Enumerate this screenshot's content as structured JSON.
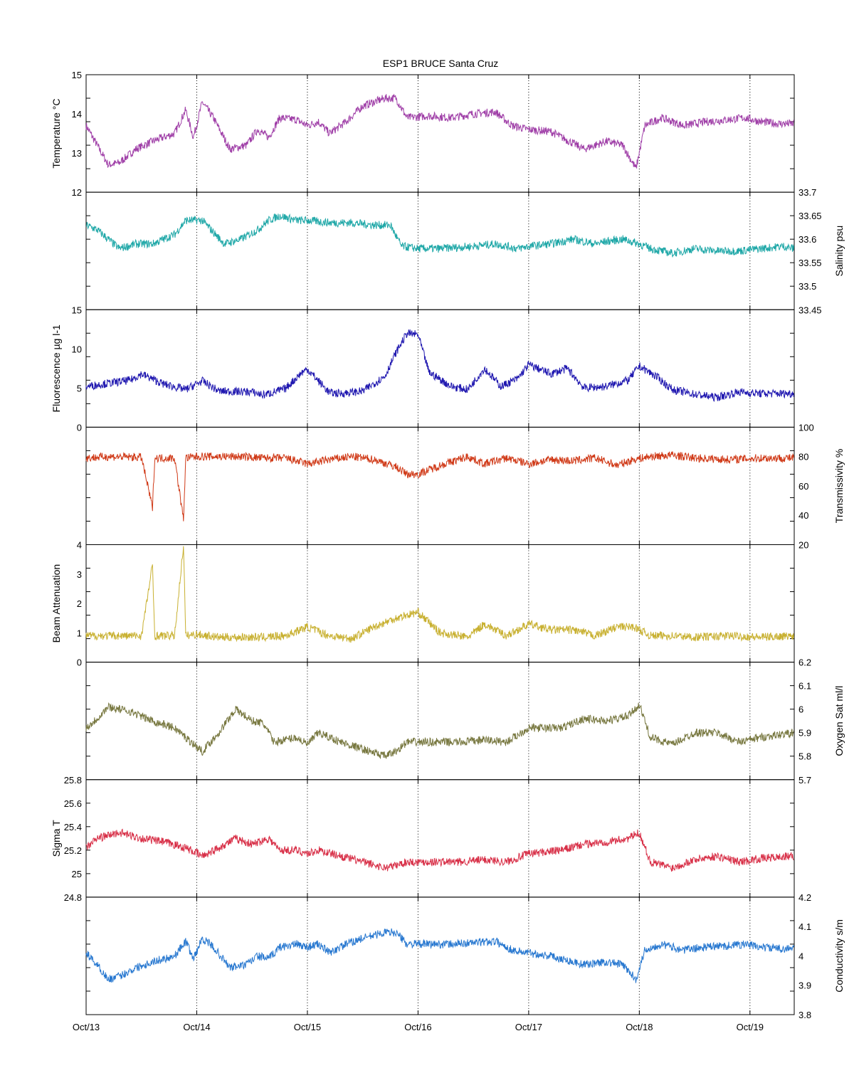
{
  "chart_data": {
    "type": "line",
    "title": "ESP1 BRUCE Santa Cruz",
    "x_ticks": [
      "Oct/13",
      "Oct/14",
      "Oct/15",
      "Oct/16",
      "Oct/17",
      "Oct/18",
      "Oct/19"
    ],
    "x_range_days": [
      13.0,
      19.4
    ],
    "grid": "vertical dotted lines at each day",
    "panels": [
      {
        "ylabel": "Temperature °C",
        "axis": "left",
        "ylim": [
          12,
          15
        ],
        "yticks": [
          "12",
          "13",
          "14",
          "15"
        ],
        "color": "#a040a8",
        "x": [
          13.0,
          13.1,
          13.2,
          13.3,
          13.45,
          13.6,
          13.8,
          13.9,
          13.97,
          14.05,
          14.15,
          14.3,
          14.45,
          14.55,
          14.65,
          14.75,
          14.9,
          15.0,
          15.1,
          15.2,
          15.35,
          15.5,
          15.7,
          15.8,
          15.9,
          16.1,
          16.3,
          16.5,
          16.7,
          16.85,
          17.0,
          17.2,
          17.3,
          17.5,
          17.7,
          17.85,
          17.97,
          18.05,
          18.2,
          18.4,
          18.6,
          18.8,
          18.95,
          19.1,
          19.25,
          19.4
        ],
        "values": [
          13.7,
          13.2,
          12.7,
          12.75,
          13.1,
          13.3,
          13.5,
          14.1,
          13.4,
          14.3,
          13.9,
          13.1,
          13.2,
          13.6,
          13.4,
          13.9,
          13.85,
          13.7,
          13.8,
          13.5,
          13.8,
          14.2,
          14.4,
          14.4,
          13.9,
          13.95,
          13.9,
          14.0,
          14.05,
          13.7,
          13.6,
          13.55,
          13.4,
          13.1,
          13.3,
          13.2,
          12.6,
          13.7,
          13.9,
          13.7,
          13.8,
          13.85,
          13.9,
          13.8,
          13.75,
          13.75
        ]
      },
      {
        "ylabel": "Salinity psu",
        "axis": "right",
        "ylim": [
          33.45,
          33.7
        ],
        "yticks": [
          "33.45",
          "33.5",
          "33.55",
          "33.6",
          "33.65",
          "33.7"
        ],
        "color": "#20a8a8",
        "x": [
          13.0,
          13.1,
          13.2,
          13.3,
          13.45,
          13.6,
          13.8,
          13.9,
          14.05,
          14.25,
          14.4,
          14.55,
          14.65,
          14.75,
          14.9,
          15.0,
          15.2,
          15.4,
          15.6,
          15.75,
          15.85,
          16.0,
          16.2,
          16.5,
          16.7,
          16.9,
          17.0,
          17.2,
          17.4,
          17.6,
          17.7,
          17.85,
          18.0,
          18.1,
          18.3,
          18.5,
          18.7,
          18.9,
          19.1,
          19.3,
          19.4
        ],
        "values": [
          33.63,
          33.62,
          33.6,
          33.58,
          33.59,
          33.59,
          33.61,
          33.64,
          33.64,
          33.59,
          33.6,
          33.62,
          33.64,
          33.65,
          33.64,
          33.64,
          33.635,
          33.635,
          33.63,
          33.63,
          33.585,
          33.58,
          33.58,
          33.585,
          33.59,
          33.58,
          33.585,
          33.59,
          33.6,
          33.59,
          33.595,
          33.6,
          33.59,
          33.58,
          33.57,
          33.58,
          33.575,
          33.575,
          33.58,
          33.585,
          33.58
        ]
      },
      {
        "ylabel": "Fluorescence µg l-1",
        "axis": "left",
        "ylim": [
          0,
          15
        ],
        "yticks": [
          "0",
          "5",
          "10",
          "15"
        ],
        "color": "#2018b0",
        "x": [
          13.0,
          13.2,
          13.4,
          13.5,
          13.7,
          13.9,
          14.05,
          14.2,
          14.5,
          14.6,
          14.8,
          14.95,
          15.0,
          15.2,
          15.3,
          15.5,
          15.7,
          15.8,
          15.9,
          16.0,
          16.1,
          16.3,
          16.45,
          16.6,
          16.75,
          16.9,
          17.0,
          17.2,
          17.35,
          17.5,
          17.7,
          17.9,
          18.0,
          18.15,
          18.3,
          18.5,
          18.7,
          18.9,
          19.1,
          19.4
        ],
        "values": [
          5.2,
          5.6,
          6.0,
          6.8,
          5.5,
          4.8,
          5.9,
          4.6,
          4.5,
          4.1,
          4.9,
          7.0,
          7.4,
          4.4,
          4.3,
          4.6,
          6.5,
          9.5,
          12.0,
          11.8,
          7.0,
          5.2,
          4.8,
          7.5,
          5.2,
          6.2,
          8.0,
          6.8,
          7.5,
          5.0,
          5.2,
          6.0,
          7.8,
          6.5,
          4.8,
          4.2,
          3.8,
          4.5,
          4.3,
          4.3
        ]
      },
      {
        "ylabel": "Transmissivity %",
        "axis": "right",
        "ylim": [
          20,
          100
        ],
        "yticks": [
          "20",
          "40",
          "60",
          "80",
          "100"
        ],
        "color": "#d03a18",
        "x": [
          13.0,
          13.2,
          13.5,
          13.6,
          13.62,
          13.8,
          13.88,
          13.9,
          14.0,
          14.2,
          14.4,
          14.6,
          14.8,
          15.0,
          15.2,
          15.4,
          15.6,
          15.8,
          15.9,
          16.0,
          16.2,
          16.45,
          16.6,
          16.8,
          17.0,
          17.2,
          17.4,
          17.6,
          17.8,
          17.95,
          18.1,
          18.3,
          18.5,
          18.8,
          19.1,
          19.4
        ],
        "values": [
          79,
          80,
          79.5,
          45,
          79,
          79,
          37,
          79,
          80,
          80,
          80,
          79,
          79,
          75,
          78,
          80,
          78,
          73,
          68,
          68,
          74,
          80,
          75,
          79,
          75,
          78,
          77,
          79,
          74,
          78,
          80,
          81,
          79,
          78,
          79,
          79
        ]
      },
      {
        "ylabel": "Beam Attenuation",
        "axis": "left",
        "ylim": [
          0,
          4
        ],
        "yticks": [
          "0",
          "1",
          "2",
          "3",
          "4"
        ],
        "color": "#c8b030",
        "x": [
          13.0,
          13.2,
          13.5,
          13.6,
          13.62,
          13.8,
          13.88,
          13.9,
          14.0,
          14.2,
          14.4,
          14.6,
          14.8,
          15.0,
          15.2,
          15.4,
          15.6,
          15.8,
          15.9,
          16.0,
          16.2,
          16.45,
          16.6,
          16.8,
          17.0,
          17.2,
          17.4,
          17.6,
          17.8,
          17.95,
          18.1,
          18.3,
          18.5,
          18.8,
          19.1,
          19.4
        ],
        "values": [
          0.9,
          0.9,
          0.9,
          3.3,
          0.9,
          0.9,
          4.0,
          0.9,
          0.95,
          0.85,
          0.85,
          0.85,
          0.9,
          1.2,
          0.9,
          0.8,
          1.2,
          1.5,
          1.6,
          1.7,
          1.0,
          0.85,
          1.3,
          0.9,
          1.3,
          1.1,
          1.1,
          0.9,
          1.2,
          1.2,
          0.9,
          0.9,
          0.85,
          0.9,
          0.85,
          0.9
        ]
      },
      {
        "ylabel": "Oxygen Sat ml/l",
        "axis": "right",
        "ylim": [
          5.7,
          6.2
        ],
        "yticks": [
          "5.7",
          "5.8",
          "5.9",
          "6",
          "6.1",
          "6.2"
        ],
        "color": "#787840",
        "x": [
          13.0,
          13.1,
          13.2,
          13.4,
          13.6,
          13.8,
          13.9,
          14.05,
          14.2,
          14.35,
          14.5,
          14.6,
          14.7,
          14.9,
          15.0,
          15.1,
          15.3,
          15.5,
          15.7,
          15.8,
          15.9,
          16.1,
          16.4,
          16.6,
          16.8,
          17.0,
          17.3,
          17.5,
          17.7,
          17.9,
          18.0,
          18.1,
          18.3,
          18.5,
          18.7,
          18.9,
          19.1,
          19.4
        ],
        "values": [
          5.92,
          5.96,
          6.01,
          5.99,
          5.95,
          5.92,
          5.88,
          5.82,
          5.9,
          6.0,
          5.95,
          5.94,
          5.86,
          5.88,
          5.85,
          5.9,
          5.86,
          5.83,
          5.8,
          5.82,
          5.86,
          5.86,
          5.86,
          5.87,
          5.86,
          5.92,
          5.92,
          5.96,
          5.95,
          5.97,
          6.02,
          5.88,
          5.85,
          5.9,
          5.9,
          5.86,
          5.88,
          5.9
        ]
      },
      {
        "ylabel": "Sigma T",
        "axis": "left",
        "ylim": [
          24.8,
          25.8
        ],
        "yticks": [
          "24.8",
          "25",
          "25.2",
          "25.4",
          "25.6",
          "25.8"
        ],
        "color": "#d83048",
        "x": [
          13.0,
          13.1,
          13.3,
          13.5,
          13.7,
          13.9,
          14.05,
          14.2,
          14.35,
          14.5,
          14.65,
          14.75,
          14.9,
          15.0,
          15.1,
          15.3,
          15.5,
          15.7,
          15.8,
          15.9,
          16.1,
          16.4,
          16.6,
          16.8,
          17.0,
          17.3,
          17.5,
          17.7,
          17.9,
          18.0,
          18.1,
          18.3,
          18.5,
          18.7,
          18.9,
          19.1,
          19.4
        ],
        "values": [
          25.22,
          25.3,
          25.35,
          25.3,
          25.27,
          25.22,
          25.15,
          25.22,
          25.3,
          25.25,
          25.3,
          25.2,
          25.2,
          25.17,
          25.2,
          25.15,
          25.1,
          25.05,
          25.07,
          25.1,
          25.1,
          25.1,
          25.12,
          25.1,
          25.17,
          25.2,
          25.25,
          25.27,
          25.3,
          25.35,
          25.1,
          25.05,
          25.12,
          25.15,
          25.1,
          25.13,
          25.15
        ]
      },
      {
        "ylabel": "Conductivity s/m",
        "axis": "right",
        "ylim": [
          3.8,
          4.2
        ],
        "yticks": [
          "3.8",
          "3.9",
          "4",
          "4.1",
          "4.2"
        ],
        "color": "#2878d0",
        "x": [
          13.0,
          13.1,
          13.2,
          13.3,
          13.45,
          13.6,
          13.8,
          13.9,
          13.97,
          14.05,
          14.15,
          14.3,
          14.45,
          14.55,
          14.65,
          14.75,
          14.9,
          15.0,
          15.1,
          15.2,
          15.35,
          15.5,
          15.7,
          15.8,
          15.9,
          16.1,
          16.3,
          16.5,
          16.7,
          16.85,
          17.0,
          17.2,
          17.3,
          17.5,
          17.7,
          17.85,
          17.97,
          18.05,
          18.2,
          18.4,
          18.6,
          18.8,
          18.95,
          19.1,
          19.25,
          19.4
        ],
        "values": [
          4.01,
          3.97,
          3.92,
          3.93,
          3.96,
          3.98,
          4.0,
          4.05,
          3.99,
          4.06,
          4.03,
          3.96,
          3.97,
          4.0,
          3.99,
          4.03,
          4.04,
          4.03,
          4.04,
          4.01,
          4.04,
          4.06,
          4.08,
          4.08,
          4.04,
          4.04,
          4.04,
          4.045,
          4.05,
          4.02,
          4.01,
          4.0,
          3.99,
          3.97,
          3.98,
          3.97,
          3.92,
          4.02,
          4.04,
          4.02,
          4.03,
          4.035,
          4.04,
          4.03,
          4.025,
          4.025
        ]
      }
    ]
  }
}
